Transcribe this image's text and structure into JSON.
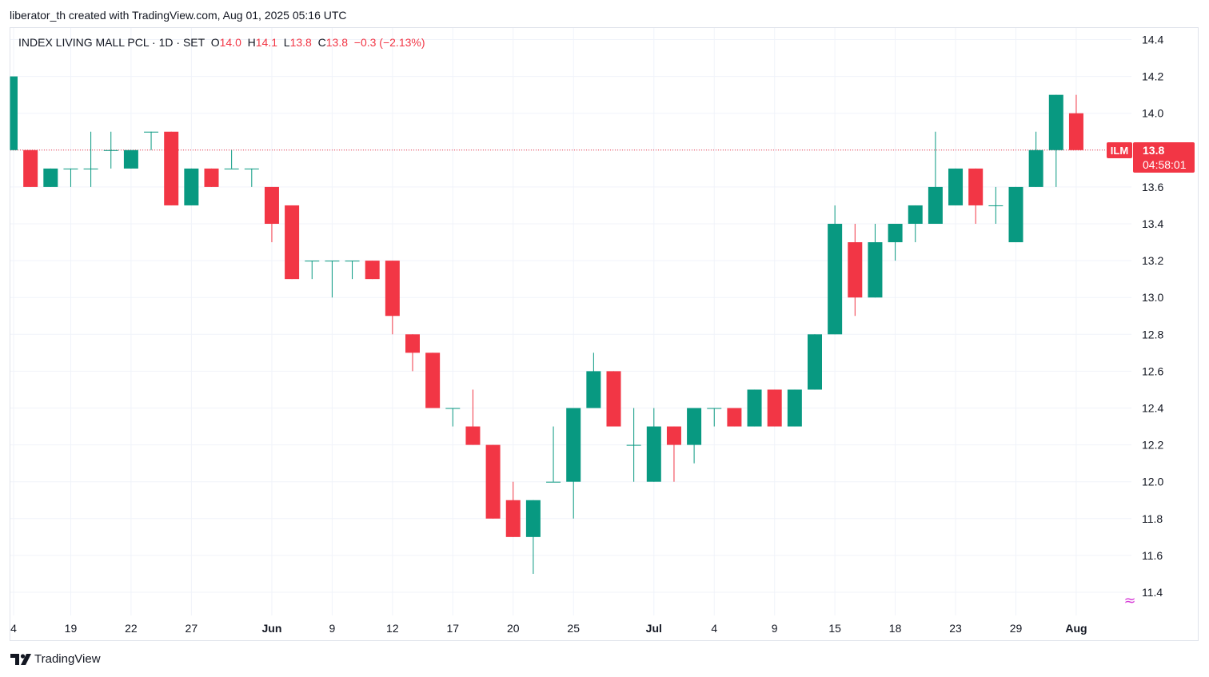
{
  "caption": "liberator_th created with TradingView.com, Aug 01, 2025 05:16 UTC",
  "legend": {
    "name": "INDEX LIVING MALL PCL",
    "sep1": "·",
    "interval": "1D",
    "sep2": "·",
    "exchange": "SET",
    "o_label": "O",
    "o_value": "14.0",
    "h_label": "H",
    "h_value": "14.1",
    "l_label": "L",
    "l_value": "13.8",
    "c_label": "C",
    "c_value": "13.8",
    "change": "−0.3 (−2.13%)"
  },
  "price_tag": {
    "symbol": "ILM",
    "price": "13.8",
    "countdown": "04:58:01"
  },
  "footer": {
    "brand": "TradingView"
  },
  "colors": {
    "up": "#089981",
    "down": "#f23645",
    "grid": "#f0f3fa",
    "text": "#131722"
  },
  "chart_data": {
    "type": "candlestick",
    "symbol": "ILM",
    "y_axis": {
      "side": "right",
      "ylim": [
        11.3,
        14.5
      ],
      "ticks": [
        "14.4",
        "14.2",
        "14.0",
        "13.8",
        "13.6",
        "13.4",
        "13.2",
        "13.0",
        "12.8",
        "12.6",
        "12.4",
        "12.2",
        "12.0",
        "11.8",
        "11.6",
        "11.4"
      ]
    },
    "x_axis": {
      "ticks": [
        {
          "label": "4",
          "bar": 0,
          "bold": false
        },
        {
          "label": "19",
          "bar": 3,
          "bold": false
        },
        {
          "label": "22",
          "bar": 6,
          "bold": false
        },
        {
          "label": "27",
          "bar": 9,
          "bold": false
        },
        {
          "label": "Jun",
          "bar": 13,
          "bold": true
        },
        {
          "label": "9",
          "bar": 16,
          "bold": false
        },
        {
          "label": "12",
          "bar": 19,
          "bold": false
        },
        {
          "label": "17",
          "bar": 22,
          "bold": false
        },
        {
          "label": "20",
          "bar": 25,
          "bold": false
        },
        {
          "label": "25",
          "bar": 28,
          "bold": false
        },
        {
          "label": "Jul",
          "bar": 32,
          "bold": true
        },
        {
          "label": "4",
          "bar": 35,
          "bold": false
        },
        {
          "label": "9",
          "bar": 38,
          "bold": false
        },
        {
          "label": "15",
          "bar": 41,
          "bold": false
        },
        {
          "label": "18",
          "bar": 44,
          "bold": false
        },
        {
          "label": "23",
          "bar": 47,
          "bold": false
        },
        {
          "label": "29",
          "bar": 50,
          "bold": false
        },
        {
          "label": "Aug",
          "bar": 53,
          "bold": true
        }
      ]
    },
    "last_price": 13.8,
    "grid": true,
    "candles": [
      {
        "o": 13.8,
        "h": 14.2,
        "l": 13.8,
        "c": 14.2
      },
      {
        "o": 13.8,
        "h": 13.8,
        "l": 13.6,
        "c": 13.6
      },
      {
        "o": 13.6,
        "h": 13.7,
        "l": 13.6,
        "c": 13.7
      },
      {
        "o": 13.7,
        "h": 13.7,
        "l": 13.6,
        "c": 13.7
      },
      {
        "o": 13.7,
        "h": 13.9,
        "l": 13.6,
        "c": 13.7
      },
      {
        "o": 13.8,
        "h": 13.9,
        "l": 13.7,
        "c": 13.8
      },
      {
        "o": 13.7,
        "h": 13.8,
        "l": 13.7,
        "c": 13.8
      },
      {
        "o": 13.9,
        "h": 13.9,
        "l": 13.8,
        "c": 13.9
      },
      {
        "o": 13.9,
        "h": 13.9,
        "l": 13.5,
        "c": 13.5
      },
      {
        "o": 13.5,
        "h": 13.7,
        "l": 13.5,
        "c": 13.7
      },
      {
        "o": 13.7,
        "h": 13.7,
        "l": 13.6,
        "c": 13.6
      },
      {
        "o": 13.7,
        "h": 13.8,
        "l": 13.7,
        "c": 13.7
      },
      {
        "o": 13.7,
        "h": 13.7,
        "l": 13.6,
        "c": 13.7
      },
      {
        "o": 13.6,
        "h": 13.6,
        "l": 13.3,
        "c": 13.4
      },
      {
        "o": 13.5,
        "h": 13.5,
        "l": 13.1,
        "c": 13.1
      },
      {
        "o": 13.2,
        "h": 13.2,
        "l": 13.1,
        "c": 13.2
      },
      {
        "o": 13.2,
        "h": 13.2,
        "l": 13.0,
        "c": 13.2
      },
      {
        "o": 13.2,
        "h": 13.2,
        "l": 13.1,
        "c": 13.2
      },
      {
        "o": 13.2,
        "h": 13.2,
        "l": 13.1,
        "c": 13.1
      },
      {
        "o": 13.2,
        "h": 13.2,
        "l": 12.8,
        "c": 12.9
      },
      {
        "o": 12.8,
        "h": 12.8,
        "l": 12.6,
        "c": 12.7
      },
      {
        "o": 12.7,
        "h": 12.7,
        "l": 12.4,
        "c": 12.4
      },
      {
        "o": 12.4,
        "h": 12.4,
        "l": 12.3,
        "c": 12.4
      },
      {
        "o": 12.3,
        "h": 12.5,
        "l": 12.2,
        "c": 12.2
      },
      {
        "o": 12.2,
        "h": 12.2,
        "l": 11.8,
        "c": 11.8
      },
      {
        "o": 11.9,
        "h": 12.0,
        "l": 11.7,
        "c": 11.7
      },
      {
        "o": 11.7,
        "h": 11.9,
        "l": 11.5,
        "c": 11.9
      },
      {
        "o": 12.0,
        "h": 12.3,
        "l": 12.0,
        "c": 12.0
      },
      {
        "o": 12.0,
        "h": 12.4,
        "l": 11.8,
        "c": 12.4
      },
      {
        "o": 12.4,
        "h": 12.7,
        "l": 12.4,
        "c": 12.6
      },
      {
        "o": 12.6,
        "h": 12.6,
        "l": 12.3,
        "c": 12.3
      },
      {
        "o": 12.2,
        "h": 12.4,
        "l": 12.0,
        "c": 12.2
      },
      {
        "o": 12.0,
        "h": 12.4,
        "l": 12.0,
        "c": 12.3
      },
      {
        "o": 12.3,
        "h": 12.3,
        "l": 12.0,
        "c": 12.2
      },
      {
        "o": 12.2,
        "h": 12.4,
        "l": 12.1,
        "c": 12.4
      },
      {
        "o": 12.4,
        "h": 12.4,
        "l": 12.3,
        "c": 12.4
      },
      {
        "o": 12.4,
        "h": 12.4,
        "l": 12.3,
        "c": 12.3
      },
      {
        "o": 12.3,
        "h": 12.5,
        "l": 12.3,
        "c": 12.5
      },
      {
        "o": 12.5,
        "h": 12.5,
        "l": 12.3,
        "c": 12.3
      },
      {
        "o": 12.3,
        "h": 12.5,
        "l": 12.3,
        "c": 12.5
      },
      {
        "o": 12.5,
        "h": 12.8,
        "l": 12.5,
        "c": 12.8
      },
      {
        "o": 12.8,
        "h": 13.5,
        "l": 12.8,
        "c": 13.4
      },
      {
        "o": 13.3,
        "h": 13.4,
        "l": 12.9,
        "c": 13.0
      },
      {
        "o": 13.0,
        "h": 13.4,
        "l": 13.0,
        "c": 13.3
      },
      {
        "o": 13.3,
        "h": 13.4,
        "l": 13.2,
        "c": 13.4
      },
      {
        "o": 13.4,
        "h": 13.5,
        "l": 13.3,
        "c": 13.5
      },
      {
        "o": 13.4,
        "h": 13.9,
        "l": 13.4,
        "c": 13.6
      },
      {
        "o": 13.5,
        "h": 13.7,
        "l": 13.5,
        "c": 13.7
      },
      {
        "o": 13.7,
        "h": 13.7,
        "l": 13.4,
        "c": 13.5
      },
      {
        "o": 13.5,
        "h": 13.6,
        "l": 13.4,
        "c": 13.5
      },
      {
        "o": 13.3,
        "h": 13.6,
        "l": 13.3,
        "c": 13.6
      },
      {
        "o": 13.6,
        "h": 13.9,
        "l": 13.6,
        "c": 13.8
      },
      {
        "o": 13.8,
        "h": 14.1,
        "l": 13.6,
        "c": 14.1
      },
      {
        "o": 14.0,
        "h": 14.1,
        "l": 13.8,
        "c": 13.8
      }
    ]
  }
}
